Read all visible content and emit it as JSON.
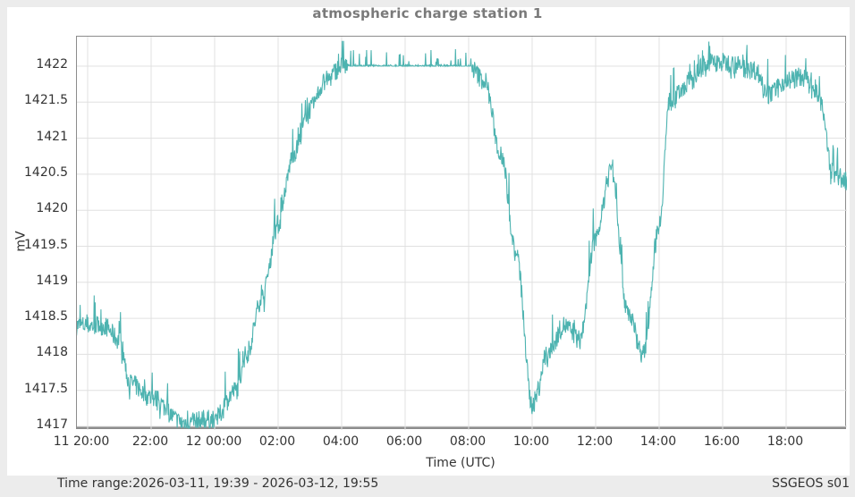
{
  "title": "atmospheric charge station 1",
  "footer": {
    "time_range": "Time range:2026-03-11, 19:39 - 2026-03-12, 19:55",
    "station": "SSGEOS s01"
  },
  "colors": {
    "line": "#4db3b0",
    "grid": "#e0e0e0",
    "axis": "#8c8c8c",
    "title": "#7a7a7a"
  },
  "chart_data": {
    "type": "line",
    "title": "atmospheric charge station 1",
    "xlabel": "Time (UTC)",
    "ylabel": "mV",
    "ylim": [
      1417,
      1422.4
    ],
    "grid": true,
    "legend": null,
    "y_ticks": [
      "1417",
      "1417.5",
      "1418",
      "1418.5",
      "1419",
      "1419.5",
      "1420",
      "1420.5",
      "1421",
      "1421.5",
      "1422"
    ],
    "x_ticks": [
      "11 20:00",
      "22:00",
      "12 00:00",
      "02:00",
      "04:00",
      "06:00",
      "08:00",
      "10:00",
      "12:00",
      "14:00",
      "16:00",
      "18:00"
    ],
    "x_range": [
      "2026-03-11 19:39",
      "2026-03-12 19:55"
    ],
    "series": [
      {
        "name": "atmospheric charge station 1",
        "x_hours_from_11_20_00": [
          -0.35,
          0.5,
          1.0,
          1.33,
          2.0,
          3.0,
          4.0,
          4.67,
          5.0,
          5.5,
          6.0,
          6.5,
          7.0,
          7.5,
          8.0,
          10.0,
          12.0,
          12.5,
          13.0,
          13.5,
          14.0,
          14.5,
          15.0,
          15.5,
          16.0,
          16.5,
          17.0,
          17.5,
          18.0,
          18.33,
          19.0,
          19.5,
          20.0,
          21.0,
          21.5,
          22.0,
          22.5,
          23.0,
          23.5,
          23.92
        ],
        "values": [
          1418.4,
          1418.4,
          1418.2,
          1417.6,
          1417.4,
          1417.05,
          1417.1,
          1417.5,
          1418.0,
          1418.8,
          1419.8,
          1420.8,
          1421.4,
          1421.8,
          1422.0,
          1422.0,
          1422.0,
          1421.8,
          1420.8,
          1419.4,
          1417.3,
          1418.0,
          1418.4,
          1418.2,
          1419.6,
          1420.6,
          1418.6,
          1418.0,
          1419.8,
          1421.5,
          1421.8,
          1422.05,
          1422.05,
          1421.95,
          1421.6,
          1421.8,
          1421.85,
          1421.6,
          1420.5,
          1420.4
        ]
      }
    ]
  }
}
